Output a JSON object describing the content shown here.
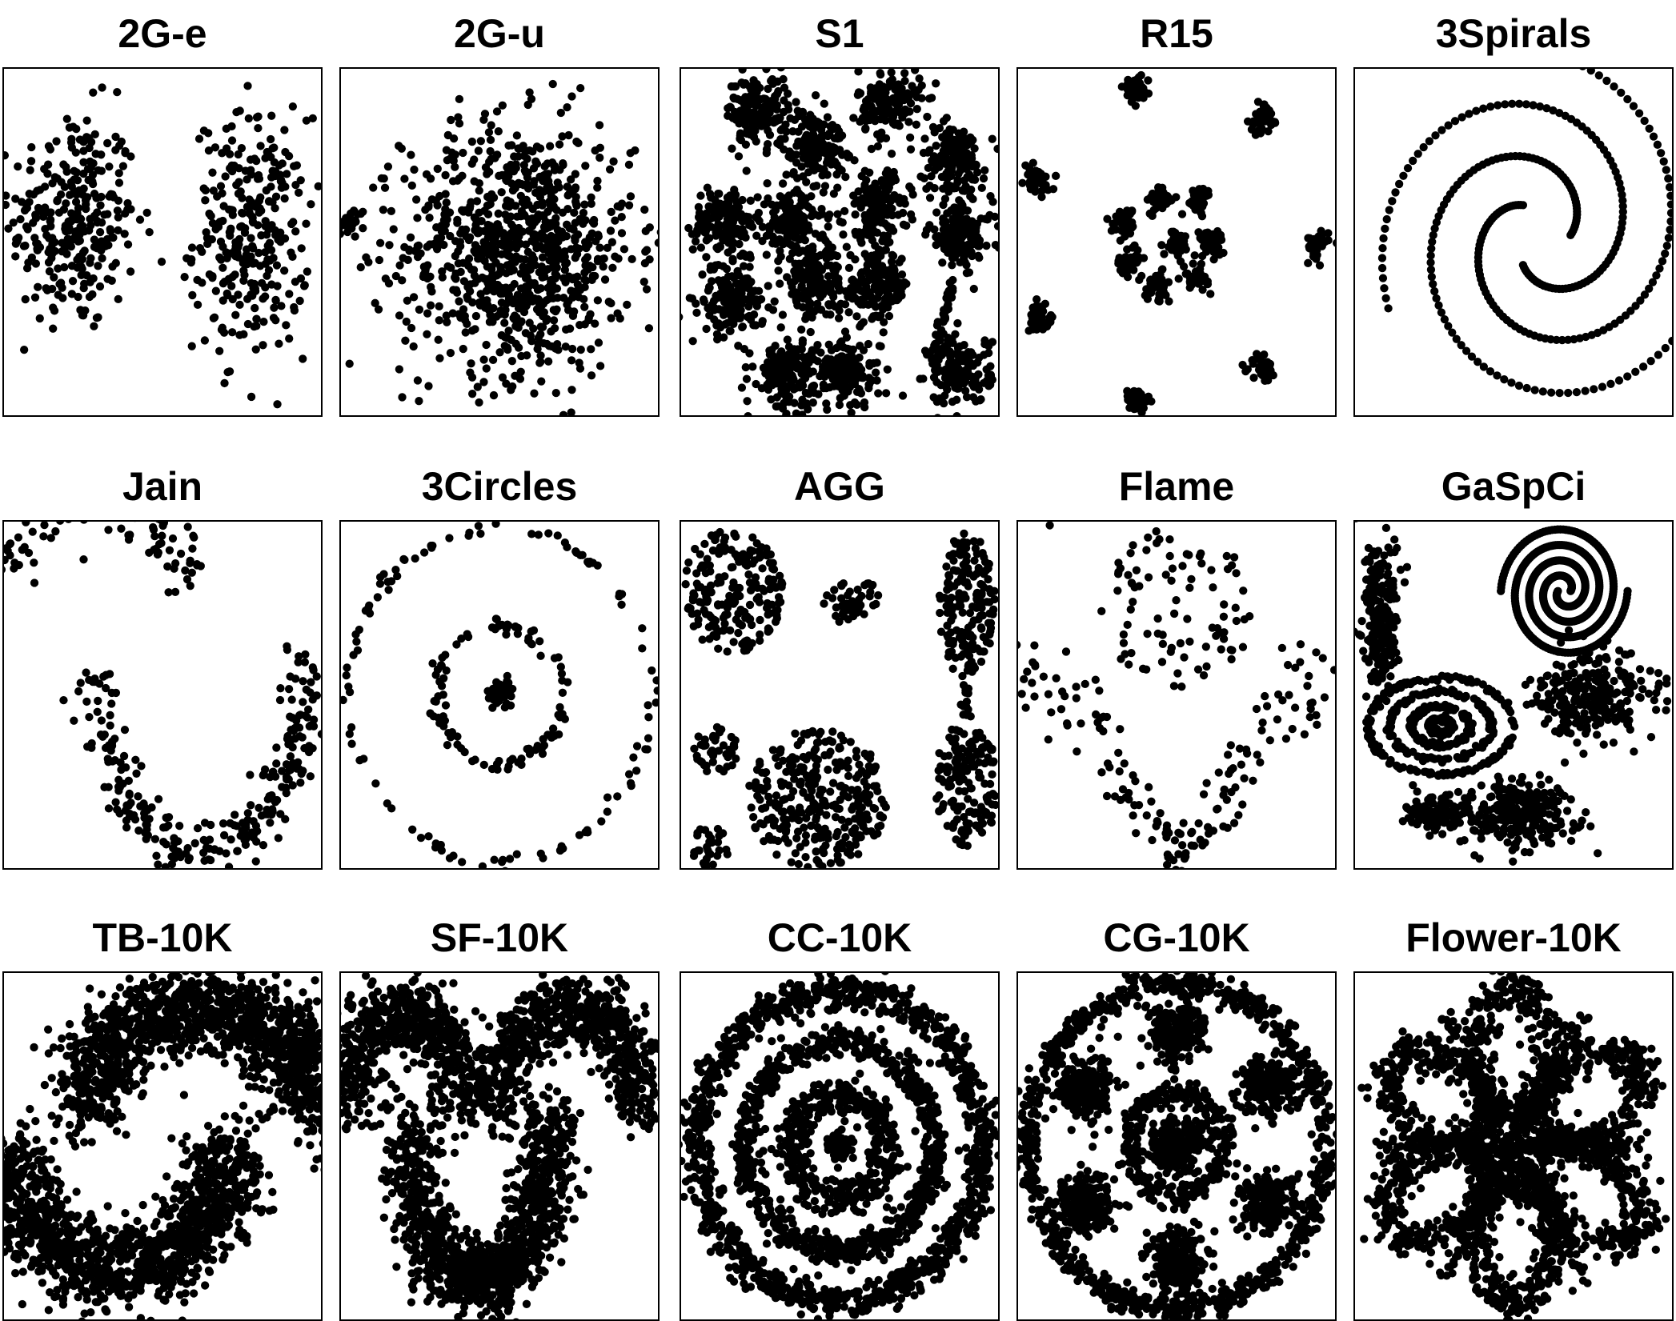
{
  "figure": {
    "ink_color": "#000000",
    "background": "#ffffff"
  },
  "chart_data": [
    {
      "type": "scatter",
      "title": "2G-e",
      "xlabel": "",
      "ylabel": "",
      "grid": false,
      "axes_ticks": false,
      "series": [
        {
          "shape": "gaussian",
          "center": [
            0.22,
            0.56
          ],
          "spread": [
            0.1,
            0.16
          ],
          "n": 300
        },
        {
          "shape": "gaussian",
          "center": [
            0.78,
            0.52
          ],
          "spread": [
            0.09,
            0.17
          ],
          "n": 300
        }
      ]
    },
    {
      "type": "scatter",
      "title": "2G-u",
      "xlabel": "",
      "ylabel": "",
      "grid": false,
      "axes_ticks": false,
      "series": [
        {
          "shape": "gaussian",
          "center": [
            0.04,
            0.56
          ],
          "spread": [
            0.02,
            0.02
          ],
          "n": 25
        },
        {
          "shape": "gaussian",
          "center": [
            0.56,
            0.48
          ],
          "spread": [
            0.18,
            0.18
          ],
          "n": 900
        }
      ]
    },
    {
      "type": "scatter",
      "title": "S1",
      "xlabel": "",
      "ylabel": "",
      "grid": false,
      "axes_ticks": false,
      "series": [
        {
          "shape": "blobs",
          "centers": [
            [
              0.24,
              0.88
            ],
            [
              0.42,
              0.78
            ],
            [
              0.66,
              0.9
            ],
            [
              0.86,
              0.74
            ],
            [
              0.14,
              0.56
            ],
            [
              0.35,
              0.55
            ],
            [
              0.62,
              0.6
            ],
            [
              0.88,
              0.52
            ],
            [
              0.42,
              0.38
            ],
            [
              0.62,
              0.37
            ],
            [
              0.16,
              0.33
            ],
            [
              0.33,
              0.12
            ],
            [
              0.52,
              0.12
            ],
            [
              0.88,
              0.13
            ]
          ],
          "spread": 0.05,
          "n_each": 160
        },
        {
          "shape": "segment",
          "from": [
            0.86,
            0.4
          ],
          "to": [
            0.8,
            0.18
          ],
          "n": 40
        }
      ]
    },
    {
      "type": "scatter",
      "title": "R15",
      "xlabel": "",
      "ylabel": "",
      "grid": false,
      "axes_ticks": false,
      "series": [
        {
          "shape": "blobs",
          "centers": [
            [
              0.37,
              0.94
            ],
            [
              0.77,
              0.85
            ],
            [
              0.06,
              0.68
            ],
            [
              0.94,
              0.49
            ],
            [
              0.07,
              0.28
            ],
            [
              0.77,
              0.14
            ],
            [
              0.38,
              0.04
            ],
            [
              0.45,
              0.62
            ],
            [
              0.57,
              0.62
            ],
            [
              0.61,
              0.5
            ],
            [
              0.56,
              0.4
            ],
            [
              0.44,
              0.37
            ],
            [
              0.35,
              0.45
            ],
            [
              0.34,
              0.56
            ],
            [
              0.5,
              0.5
            ]
          ],
          "spread": 0.02,
          "n_each": 40
        }
      ]
    },
    {
      "type": "scatter",
      "title": "3Spirals",
      "xlabel": "",
      "ylabel": "",
      "grid": false,
      "axes_ticks": false,
      "series": [
        {
          "shape": "spirals",
          "arms": 3,
          "center": [
            0.58,
            0.52
          ],
          "r_start": 0.1,
          "r_end": 0.52,
          "turns": 0.9,
          "n_each": 100
        }
      ]
    },
    {
      "type": "scatter",
      "title": "Jain",
      "xlabel": "",
      "ylabel": "",
      "grid": false,
      "axes_ticks": false,
      "series": [
        {
          "shape": "arc_down",
          "center": [
            0.3,
            0.84
          ],
          "radius": [
            0.28,
            0.18
          ],
          "noise": 0.04,
          "n": 90
        },
        {
          "shape": "arc_up",
          "center": [
            0.62,
            0.6
          ],
          "radius": [
            0.33,
            0.55
          ],
          "noise": 0.035,
          "n": 270
        }
      ]
    },
    {
      "type": "scatter",
      "title": "3Circles",
      "xlabel": "",
      "ylabel": "",
      "grid": false,
      "axes_ticks": false,
      "series": [
        {
          "shape": "ring",
          "center": [
            0.5,
            0.5
          ],
          "radius": [
            0.48,
            0.48
          ],
          "noise": 0.01,
          "n": 110
        },
        {
          "shape": "ring",
          "center": [
            0.5,
            0.5
          ],
          "radius": [
            0.2,
            0.2
          ],
          "noise": 0.012,
          "n": 100
        },
        {
          "shape": "gaussian",
          "center": [
            0.5,
            0.5
          ],
          "spread": [
            0.02,
            0.02
          ],
          "n": 40
        }
      ]
    },
    {
      "type": "scatter",
      "title": "AGG",
      "xlabel": "",
      "ylabel": "",
      "grid": false,
      "axes_ticks": false,
      "series": [
        {
          "shape": "disc",
          "center": [
            0.16,
            0.8
          ],
          "radius": [
            0.16,
            0.18
          ],
          "n": 200
        },
        {
          "shape": "disc",
          "center": [
            0.54,
            0.77
          ],
          "radius": [
            0.09,
            0.07
          ],
          "n": 45
        },
        {
          "shape": "disc",
          "center": [
            0.9,
            0.76
          ],
          "radius": [
            0.09,
            0.21
          ],
          "n": 170
        },
        {
          "shape": "segment",
          "from": [
            0.9,
            0.53
          ],
          "to": [
            0.9,
            0.42
          ],
          "n": 14
        },
        {
          "shape": "disc",
          "center": [
            0.9,
            0.24
          ],
          "radius": [
            0.1,
            0.18
          ],
          "n": 150
        },
        {
          "shape": "disc",
          "center": [
            0.43,
            0.2
          ],
          "radius": [
            0.22,
            0.2
          ],
          "n": 320
        },
        {
          "shape": "disc",
          "center": [
            0.11,
            0.34
          ],
          "radius": [
            0.07,
            0.07
          ],
          "n": 40
        },
        {
          "shape": "disc",
          "center": [
            0.09,
            0.06
          ],
          "radius": [
            0.06,
            0.06
          ],
          "n": 30
        }
      ]
    },
    {
      "type": "scatter",
      "title": "Flame",
      "xlabel": "",
      "ylabel": "",
      "grid": false,
      "axes_ticks": false,
      "series": [
        {
          "shape": "disc",
          "center": [
            0.5,
            0.75
          ],
          "radius": [
            0.24,
            0.24
          ],
          "n": 90
        },
        {
          "shape": "v_shape",
          "apex": [
            0.5,
            0.02
          ],
          "left_top": [
            0.04,
            0.62
          ],
          "right_top": [
            0.96,
            0.62
          ],
          "width": 0.18,
          "n": 160
        },
        {
          "shape": "point",
          "at": [
            0.1,
            0.99
          ]
        }
      ]
    },
    {
      "type": "scatter",
      "title": "GaSpCi",
      "xlabel": "",
      "ylabel": "",
      "grid": false,
      "axes_ticks": false,
      "series": [
        {
          "shape": "gaussian",
          "center": [
            0.08,
            0.73
          ],
          "spread": [
            0.03,
            0.12
          ],
          "n": 220
        },
        {
          "shape": "spirals",
          "arms": 2,
          "center": [
            0.66,
            0.8
          ],
          "r_start": 0.02,
          "r_end": 0.2,
          "turns": 2,
          "n_each": 260
        },
        {
          "shape": "concentric",
          "center": [
            0.27,
            0.41
          ],
          "radii": [
            0.03,
            0.08,
            0.14,
            0.2
          ],
          "n_each": 160
        },
        {
          "shape": "gaussian",
          "center": [
            0.76,
            0.5
          ],
          "spread": [
            0.1,
            0.06
          ],
          "n": 260
        },
        {
          "shape": "gaussian",
          "center": [
            0.52,
            0.16
          ],
          "spread": [
            0.09,
            0.05
          ],
          "n": 260
        },
        {
          "shape": "gaussian",
          "center": [
            0.25,
            0.16
          ],
          "spread": [
            0.05,
            0.03
          ],
          "n": 110
        }
      ]
    },
    {
      "type": "scatter",
      "title": "TB-10K",
      "xlabel": "",
      "ylabel": "",
      "grid": false,
      "axes_ticks": false,
      "series": [
        {
          "shape": "arc_down",
          "center": [
            0.62,
            0.6
          ],
          "radius": [
            0.36,
            0.3
          ],
          "noise": 0.065,
          "n": 1300
        },
        {
          "shape": "arc_up",
          "center": [
            0.36,
            0.5
          ],
          "radius": [
            0.34,
            0.36
          ],
          "noise": 0.065,
          "n": 1300
        }
      ]
    },
    {
      "type": "scatter",
      "title": "SF-10K",
      "xlabel": "",
      "ylabel": "",
      "grid": false,
      "axes_ticks": false,
      "series": [
        {
          "shape": "arc_down",
          "center": [
            0.2,
            0.6
          ],
          "radius": [
            0.18,
            0.28
          ],
          "noise": 0.05,
          "n": 650
        },
        {
          "shape": "arc_down",
          "center": [
            0.72,
            0.6
          ],
          "radius": [
            0.22,
            0.3
          ],
          "noise": 0.05,
          "n": 650
        },
        {
          "shape": "arc_up",
          "center": [
            0.44,
            0.6
          ],
          "radius": [
            0.22,
            0.5
          ],
          "noise": 0.05,
          "n": 1100
        }
      ]
    },
    {
      "type": "scatter",
      "title": "CC-10K",
      "xlabel": "",
      "ylabel": "",
      "grid": false,
      "axes_ticks": false,
      "series": [
        {
          "shape": "ring",
          "center": [
            0.5,
            0.5
          ],
          "radius": [
            0.45,
            0.45
          ],
          "noise": 0.025,
          "n": 1100
        },
        {
          "shape": "ring",
          "center": [
            0.5,
            0.5
          ],
          "radius": [
            0.3,
            0.3
          ],
          "noise": 0.022,
          "n": 750
        },
        {
          "shape": "ring",
          "center": [
            0.5,
            0.5
          ],
          "radius": [
            0.15,
            0.15
          ],
          "noise": 0.025,
          "n": 420
        },
        {
          "shape": "gaussian",
          "center": [
            0.5,
            0.5
          ],
          "spread": [
            0.02,
            0.02
          ],
          "n": 60
        }
      ]
    },
    {
      "type": "scatter",
      "title": "CG-10K",
      "xlabel": "",
      "ylabel": "",
      "grid": false,
      "axes_ticks": false,
      "series": [
        {
          "shape": "ring",
          "center": [
            0.5,
            0.5
          ],
          "radius": [
            0.47,
            0.47
          ],
          "noise": 0.018,
          "n": 900
        },
        {
          "shape": "ring",
          "center": [
            0.5,
            0.5
          ],
          "radius": [
            0.15,
            0.15
          ],
          "noise": 0.018,
          "n": 300
        },
        {
          "shape": "blobs",
          "centers": [
            [
              0.5,
              0.83
            ],
            [
              0.79,
              0.67
            ],
            [
              0.79,
              0.33
            ],
            [
              0.5,
              0.17
            ],
            [
              0.21,
              0.33
            ],
            [
              0.21,
              0.67
            ],
            [
              0.5,
              0.5
            ]
          ],
          "spread": 0.045,
          "n_each": 220
        }
      ]
    },
    {
      "type": "scatter",
      "title": "Flower-10K",
      "xlabel": "",
      "ylabel": "",
      "grid": false,
      "axes_ticks": false,
      "series": [
        {
          "shape": "petals",
          "center": [
            0.5,
            0.5
          ],
          "count": 6,
          "r_inner": 0.1,
          "r_outer": 0.46,
          "noise": 0.03,
          "n_each": 330
        },
        {
          "shape": "spokes",
          "center": [
            0.5,
            0.5
          ],
          "count": 3,
          "length": 0.42,
          "noise": 0.018,
          "n_each": 160
        }
      ]
    }
  ]
}
